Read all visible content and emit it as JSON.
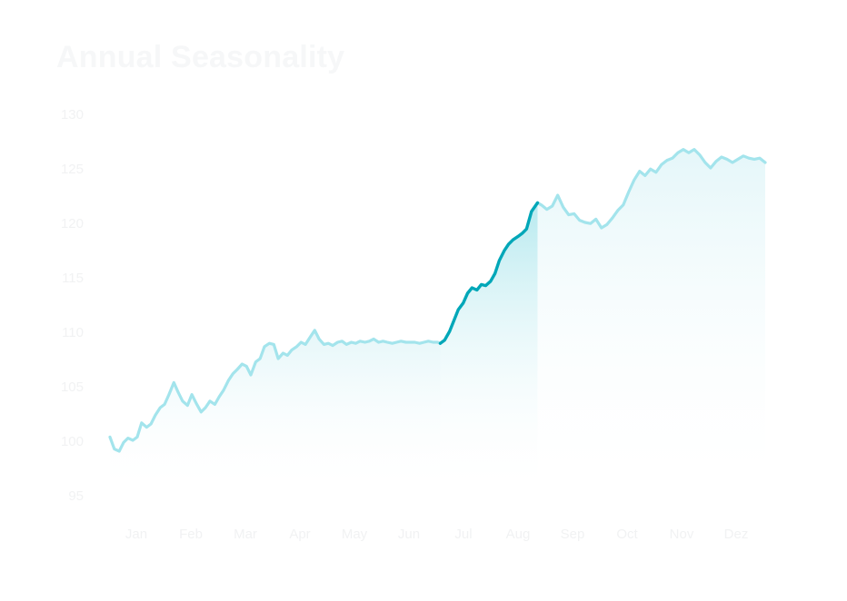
{
  "chart_data": {
    "type": "area",
    "title": "Annual Seasonality",
    "xlabel": "",
    "ylabel": "",
    "ylim": [
      95,
      130
    ],
    "yticks": [
      130,
      125,
      120,
      115,
      110,
      105,
      100,
      95
    ],
    "months": [
      "Jan",
      "Feb",
      "Mar",
      "Apr",
      "May",
      "Jun",
      "Jul",
      "Aug",
      "Sep",
      "Oct",
      "Nov",
      "Dez"
    ],
    "highlight_range": [
      6.05,
      7.83
    ],
    "colors": {
      "line": "#a3e4ec",
      "highlight_line": "#00a7b8",
      "area_top": "#e0f5f8",
      "highlight_area_top": "#b3e8ee",
      "text": "#f1f2f3"
    },
    "series": [
      {
        "x": [
          0,
          0.08,
          0.17,
          0.25,
          0.33,
          0.42,
          0.5,
          0.58,
          0.67,
          0.75,
          0.83,
          0.92,
          1.0,
          1.08,
          1.17,
          1.25,
          1.33,
          1.42,
          1.5,
          1.58,
          1.67,
          1.75,
          1.83,
          1.92,
          2.0,
          2.08,
          2.17,
          2.25,
          2.33,
          2.42,
          2.5,
          2.58,
          2.67,
          2.75,
          2.83,
          2.92,
          3.0,
          3.08,
          3.17,
          3.25,
          3.33,
          3.42,
          3.5,
          3.58,
          3.67,
          3.75,
          3.83,
          3.92,
          4.0,
          4.08,
          4.17,
          4.25,
          4.33,
          4.42,
          4.5,
          4.58,
          4.67,
          4.75,
          4.83,
          4.92,
          5.0,
          5.08,
          5.17,
          5.25,
          5.33,
          5.42,
          5.5,
          5.58,
          5.67,
          5.75,
          5.83,
          5.92,
          6.0,
          6.05,
          6.13,
          6.22,
          6.3,
          6.38,
          6.47,
          6.55,
          6.63,
          6.72,
          6.8,
          6.88,
          6.97,
          7.05,
          7.13,
          7.22,
          7.3,
          7.38,
          7.47,
          7.55,
          7.63,
          7.72,
          7.83,
          7.9,
          8.0,
          8.1,
          8.2,
          8.3,
          8.4,
          8.5,
          8.6,
          8.7,
          8.8,
          8.9,
          9.0,
          9.1,
          9.2,
          9.3,
          9.4,
          9.5,
          9.6,
          9.7,
          9.8,
          9.9,
          10.0,
          10.1,
          10.2,
          10.3,
          10.4,
          10.5,
          10.6,
          10.7,
          10.8,
          10.9,
          11.0,
          11.1,
          11.2,
          11.3,
          11.4,
          11.5,
          11.6,
          11.7,
          11.8,
          11.9,
          12.0
        ],
        "y": [
          100.3,
          99.2,
          99.0,
          99.8,
          100.2,
          100.0,
          100.3,
          101.6,
          101.2,
          101.5,
          102.3,
          103.0,
          103.3,
          104.2,
          105.3,
          104.4,
          103.6,
          103.2,
          104.2,
          103.4,
          102.6,
          103.0,
          103.6,
          103.3,
          104.0,
          104.6,
          105.5,
          106.1,
          106.5,
          107.0,
          106.8,
          106.0,
          107.2,
          107.5,
          108.6,
          108.9,
          108.8,
          107.5,
          108.0,
          107.8,
          108.3,
          108.6,
          109.0,
          108.8,
          109.5,
          110.1,
          109.3,
          108.8,
          108.9,
          108.7,
          109.0,
          109.1,
          108.8,
          109.0,
          108.9,
          109.1,
          109.0,
          109.1,
          109.3,
          109.0,
          109.1,
          109.0,
          108.9,
          109.0,
          109.1,
          109.0,
          109.0,
          109.0,
          108.9,
          109.0,
          109.1,
          109.0,
          109.0,
          108.9,
          109.2,
          110.0,
          111.0,
          112.0,
          112.6,
          113.5,
          114.0,
          113.8,
          114.3,
          114.2,
          114.6,
          115.3,
          116.5,
          117.4,
          118.0,
          118.4,
          118.7,
          119.0,
          119.4,
          121.0,
          121.8,
          121.6,
          121.2,
          121.5,
          122.5,
          121.4,
          120.7,
          120.8,
          120.2,
          120.0,
          119.9,
          120.3,
          119.5,
          119.8,
          120.4,
          121.1,
          121.6,
          122.8,
          123.9,
          124.7,
          124.3,
          124.9,
          124.6,
          125.3,
          125.7,
          125.9,
          126.4,
          126.7,
          126.4,
          126.7,
          126.2,
          125.5,
          125.0,
          125.6,
          126.0,
          125.8,
          125.5,
          125.8,
          126.1,
          125.9,
          125.8,
          125.9,
          125.5
        ]
      }
    ]
  }
}
